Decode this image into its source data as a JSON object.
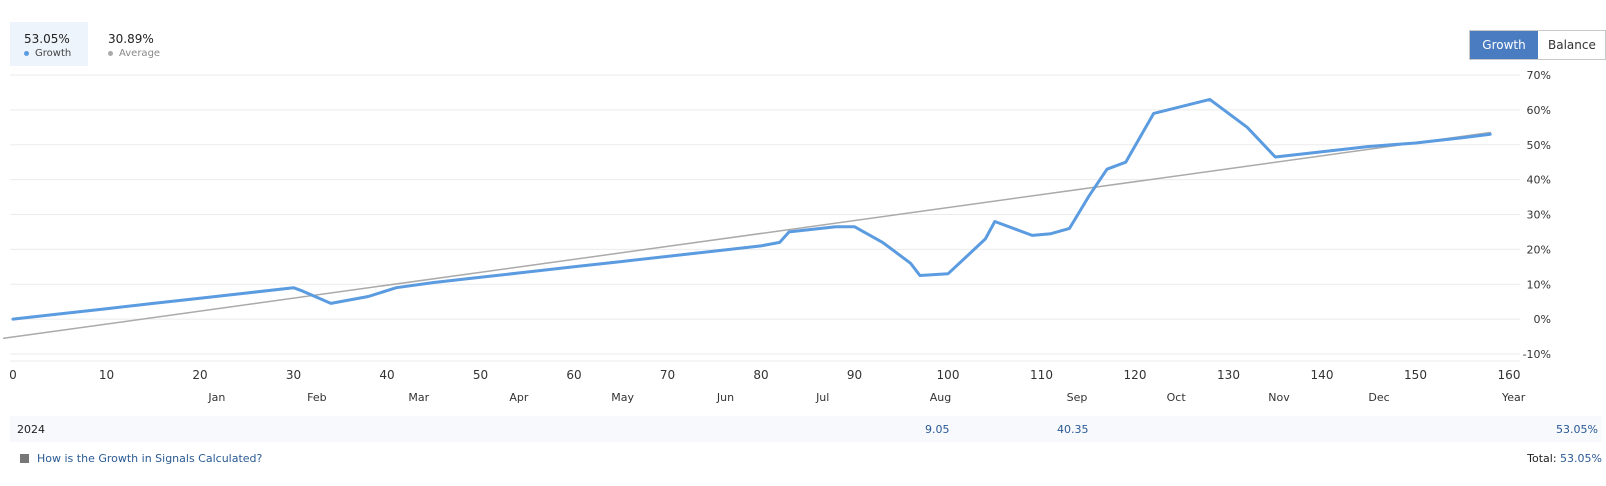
{
  "legend": {
    "growth": {
      "value": "53.05%",
      "label": "Growth",
      "color": "#5b9be0"
    },
    "average": {
      "value": "30.89%",
      "label": "Average",
      "color": "#aaaaaa"
    }
  },
  "toggle": {
    "growth_label": "Growth",
    "balance_label": "Balance",
    "active": "growth"
  },
  "chart_data": {
    "type": "line",
    "x_ticks": [
      0,
      10,
      20,
      30,
      40,
      50,
      60,
      70,
      80,
      90,
      100,
      110,
      120,
      130,
      140,
      150,
      160
    ],
    "x_tick_labels": [
      "0",
      "10",
      "20",
      "30",
      "40",
      "50",
      "60",
      "70",
      "80",
      "90",
      "100",
      "110",
      "120",
      "130",
      "140",
      "150",
      "160"
    ],
    "y_ticks": [
      -10,
      0,
      10,
      20,
      30,
      40,
      50,
      60,
      70
    ],
    "y_tick_labels": [
      "-10%",
      "0%",
      "10%",
      "20%",
      "30%",
      "40%",
      "50%",
      "60%",
      "70%"
    ],
    "xlim": [
      0,
      160
    ],
    "ylim": [
      -10,
      70
    ],
    "grid": true,
    "months": [
      {
        "label": "Jan",
        "x": 21.8
      },
      {
        "label": "Feb",
        "x": 32.5
      },
      {
        "label": "Mar",
        "x": 43.4
      },
      {
        "label": "Apr",
        "x": 54.1
      },
      {
        "label": "May",
        "x": 65.2
      },
      {
        "label": "Jun",
        "x": 76.2
      },
      {
        "label": "Jul",
        "x": 86.6
      },
      {
        "label": "Aug",
        "x": 99.2
      },
      {
        "label": "Sep",
        "x": 113.8
      },
      {
        "label": "Oct",
        "x": 124.4
      },
      {
        "label": "Nov",
        "x": 135.4
      },
      {
        "label": "Dec",
        "x": 146.1
      },
      {
        "label": "Year",
        "x": 160.5
      }
    ],
    "series": [
      {
        "name": "Growth",
        "color": "#5b9be0",
        "points": [
          [
            0,
            0
          ],
          [
            5,
            1.5
          ],
          [
            10,
            3
          ],
          [
            15,
            4.5
          ],
          [
            20,
            6
          ],
          [
            25,
            7.5
          ],
          [
            30,
            9
          ],
          [
            31,
            8
          ],
          [
            34,
            4.5
          ],
          [
            38,
            6.5
          ],
          [
            41,
            9
          ],
          [
            45,
            10.5
          ],
          [
            50,
            12
          ],
          [
            55,
            13.5
          ],
          [
            60,
            15
          ],
          [
            65,
            16.5
          ],
          [
            70,
            18
          ],
          [
            75,
            19.5
          ],
          [
            80,
            21
          ],
          [
            82,
            22
          ],
          [
            83,
            25
          ],
          [
            88,
            26.5
          ],
          [
            90,
            26.5
          ],
          [
            93,
            22
          ],
          [
            96,
            16
          ],
          [
            97,
            12.5
          ],
          [
            100,
            13
          ],
          [
            102,
            18
          ],
          [
            104,
            23
          ],
          [
            105,
            28
          ],
          [
            109,
            24
          ],
          [
            111,
            24.5
          ],
          [
            113,
            26
          ],
          [
            115,
            35
          ],
          [
            117,
            43
          ],
          [
            119,
            45
          ],
          [
            122,
            59
          ],
          [
            128,
            63
          ],
          [
            132,
            55
          ],
          [
            135,
            46.5
          ],
          [
            140,
            48
          ],
          [
            145,
            49.5
          ],
          [
            150,
            50.5
          ],
          [
            155,
            52
          ],
          [
            158,
            53
          ]
        ]
      },
      {
        "name": "Average",
        "color": "#aaaaaa",
        "points": [
          [
            -1,
            -5.5
          ],
          [
            158,
            53.5
          ]
        ]
      }
    ]
  },
  "year_row": {
    "year": "2024",
    "val1": "9.05",
    "val2": "40.35",
    "total": "53.05%"
  },
  "footer": {
    "link_text": "How is the Growth in Signals Calculated?",
    "total_label": "Total:",
    "total_value": "53.05%"
  }
}
